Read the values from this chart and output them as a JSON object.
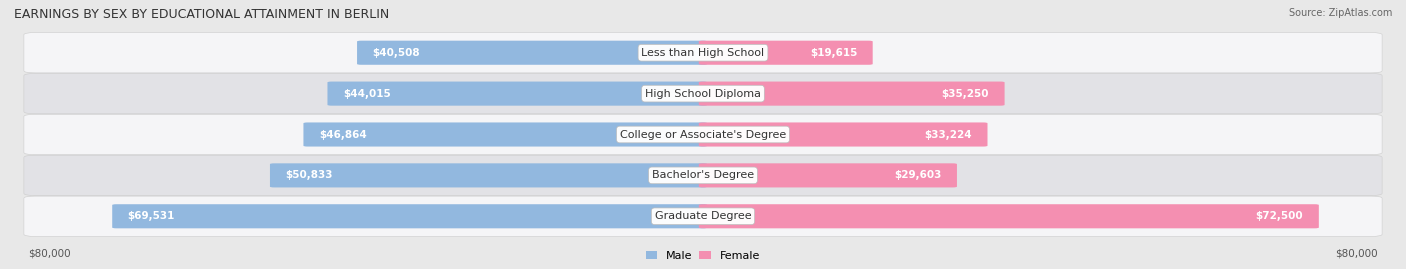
{
  "title": "EARNINGS BY SEX BY EDUCATIONAL ATTAINMENT IN BERLIN",
  "source": "Source: ZipAtlas.com",
  "categories": [
    "Less than High School",
    "High School Diploma",
    "College or Associate's Degree",
    "Bachelor's Degree",
    "Graduate Degree"
  ],
  "male_values": [
    40508,
    44015,
    46864,
    50833,
    69531
  ],
  "female_values": [
    19615,
    35250,
    33224,
    29603,
    72500
  ],
  "male_color": "#92b8df",
  "female_color": "#f48fb1",
  "max_value": 80000,
  "male_label": "Male",
  "female_label": "Female",
  "background_color": "#e8e8e8",
  "row_color_odd": "#f5f5f7",
  "row_color_even": "#e2e2e6",
  "title_fontsize": 9,
  "label_fontsize": 8,
  "value_fontsize": 7.5,
  "source_fontsize": 7
}
